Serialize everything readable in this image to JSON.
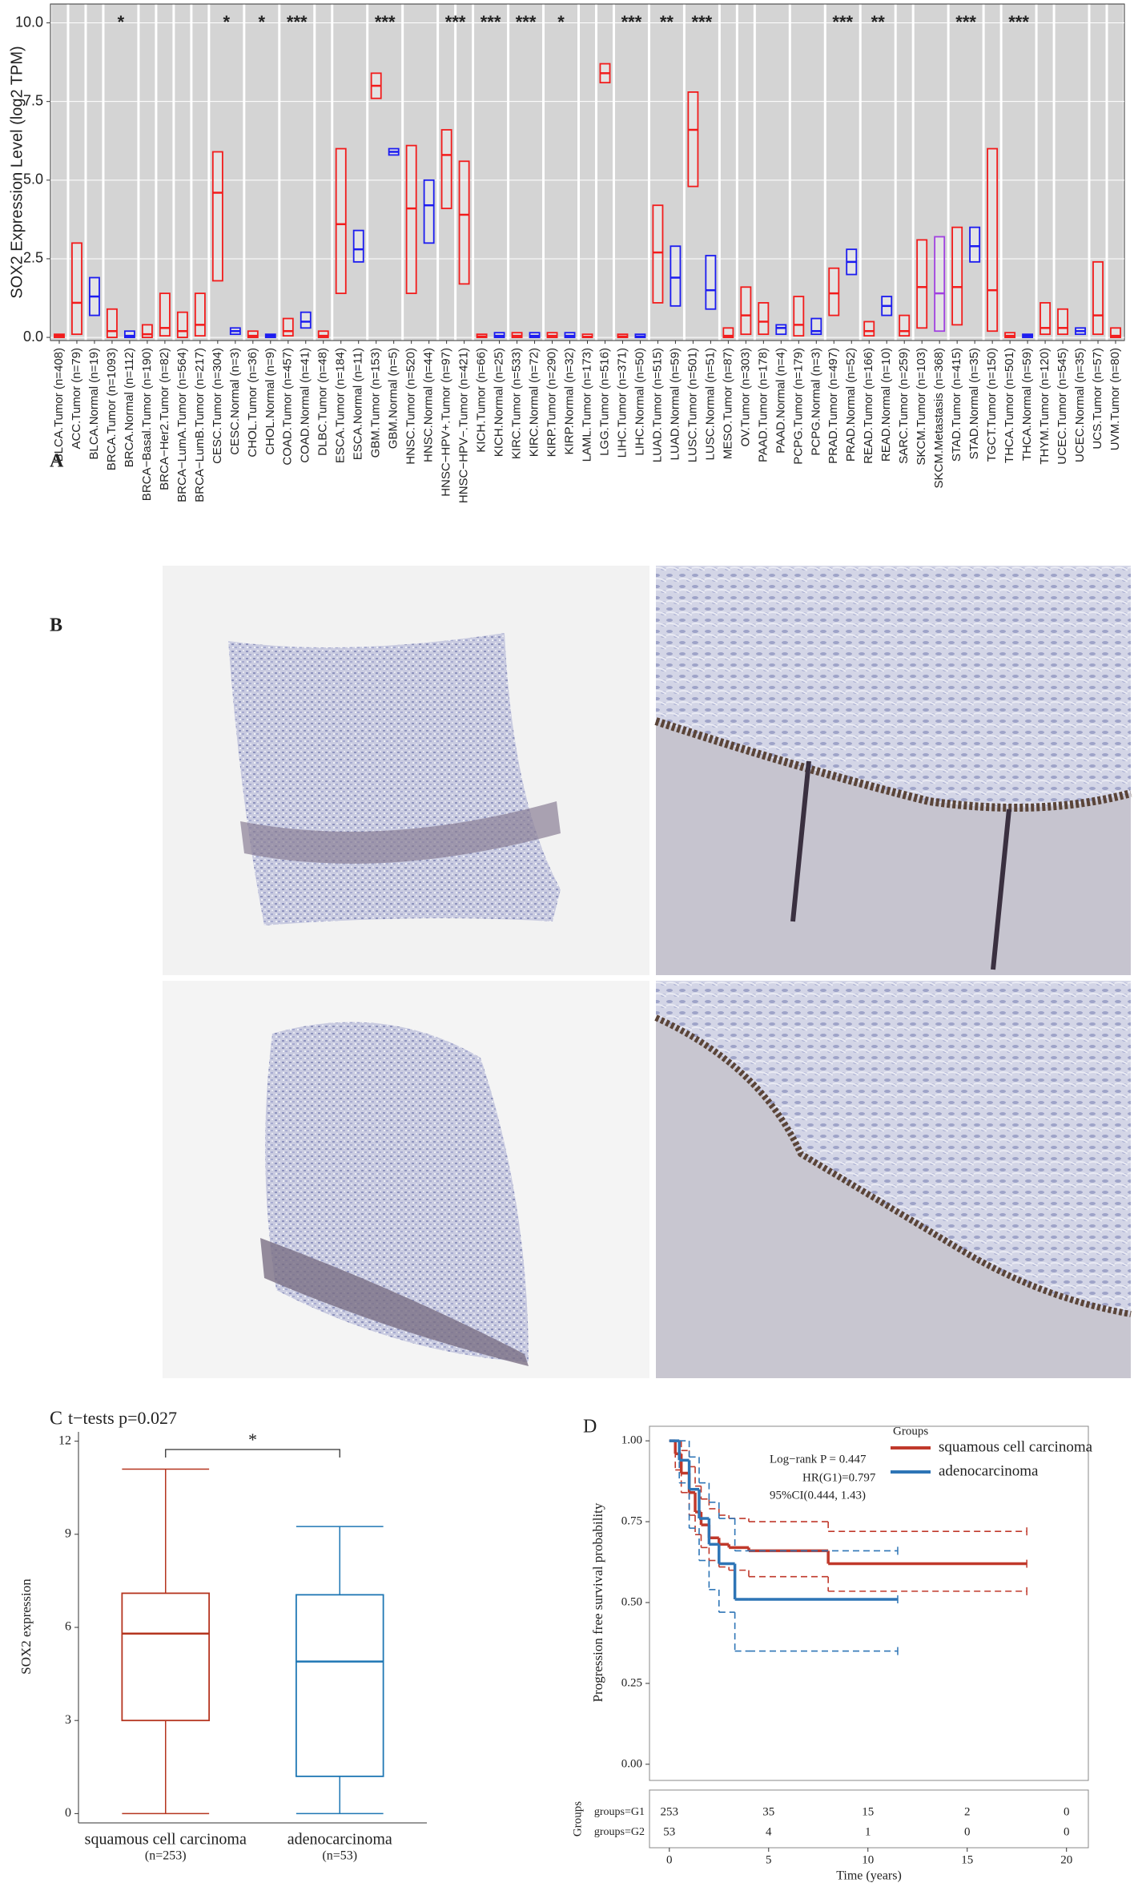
{
  "panel_b": {
    "label": "B"
  },
  "chart_data": [
    {
      "type": "box",
      "label": "A",
      "y_label": "SOX2 Expression Level (log2 TPM)",
      "categories": [
        "BLCA.Tumor (n=408)",
        "ACC.Tumor (n=79)",
        "BLCA.Normal (n=19)",
        "BRCA.Tumor (n=1093)",
        "BRCA.Normal (n=112)",
        "BRCA−Basal.Tumor (n=190)",
        "BRCA−Her2.Tumor (n=82)",
        "BRCA−LumA.Tumor (n=564)",
        "BRCA−LumB.Tumor (n=217)",
        "CESC.Tumor (n=304)",
        "CESC.Normal (n=3)",
        "CHOL.Tumor (n=36)",
        "CHOL.Normal (n=9)",
        "COAD.Tumor (n=457)",
        "COAD.Normal (n=41)",
        "DLBC.Tumor (n=48)",
        "ESCA.Tumor (n=184)",
        "ESCA.Normal (n=11)",
        "GBM.Tumor (n=153)",
        "GBM.Normal (n=5)",
        "HNSC.Tumor (n=520)",
        "HNSC.Normal (n=44)",
        "HNSC−HPV+.Tumor (n=97)",
        "HNSC−HPV−.Tumor (n=421)",
        "KICH.Tumor (n=66)",
        "KICH.Normal (n=25)",
        "KIRC.Tumor (n=533)",
        "KIRC.Normal (n=72)",
        "KIRP.Tumor (n=290)",
        "KIRP.Normal (n=32)",
        "LAML.Tumor (n=173)",
        "LGG.Tumor (n=516)",
        "LIHC.Tumor (n=371)",
        "LIHC.Normal (n=50)",
        "LUAD.Tumor (n=515)",
        "LUAD.Normal (n=59)",
        "LUSC.Tumor (n=501)",
        "LUSC.Normal (n=51)",
        "MESO.Tumor (n=87)",
        "OV.Tumor (n=303)",
        "PAAD.Tumor (n=178)",
        "PAAD.Normal (n=4)",
        "PCPG.Tumor (n=179)",
        "PCPG.Normal (n=3)",
        "PRAD.Tumor (n=497)",
        "PRAD.Normal (n=52)",
        "READ.Tumor (n=166)",
        "READ.Normal (n=10)",
        "SARC.Tumor (n=259)",
        "SKCM.Tumor (n=103)",
        "SKCM.Metastasis (n=368)",
        "STAD.Tumor (n=415)",
        "STAD.Normal (n=35)",
        "TGCT.Tumor (n=150)",
        "THCA.Tumor (n=501)",
        "THCA.Normal (n=59)",
        "THYM.Tumor (n=120)",
        "UCEC.Tumor (n=545)",
        "UCEC.Normal (n=35)",
        "UCS.Tumor (n=57)",
        "UVM.Tumor (n=80)"
      ],
      "q1": [
        0,
        0.1,
        0.7,
        0,
        0,
        0,
        0.05,
        0,
        0.05,
        1.8,
        0.1,
        0,
        0,
        0.05,
        0.3,
        0,
        1.4,
        2.4,
        7.6,
        5.8,
        1.4,
        3.0,
        4.1,
        1.7,
        0,
        0,
        0,
        0,
        0,
        0,
        0,
        8.1,
        0,
        0,
        1.1,
        1.0,
        4.8,
        0.9,
        0,
        0.1,
        0.1,
        0.1,
        0.05,
        0.1,
        0.7,
        2.0,
        0.05,
        0.7,
        0.05,
        0.3,
        0.2,
        0.4,
        2.4,
        0.2,
        0,
        0,
        0.1,
        0.1,
        0.1,
        0.1,
        0
      ],
      "median": [
        0.05,
        1.1,
        1.3,
        0.2,
        0.05,
        0.1,
        0.3,
        0.2,
        0.4,
        4.6,
        0.2,
        0.05,
        0.05,
        0.2,
        0.5,
        0.05,
        3.6,
        2.8,
        8.0,
        5.9,
        4.1,
        4.2,
        5.8,
        3.9,
        0.03,
        0.05,
        0.05,
        0.05,
        0.05,
        0.05,
        0.02,
        8.4,
        0.03,
        0.03,
        2.7,
        1.9,
        6.6,
        1.5,
        0.05,
        0.7,
        0.5,
        0.3,
        0.4,
        0.2,
        1.4,
        2.4,
        0.2,
        1.0,
        0.2,
        1.6,
        1.4,
        1.6,
        2.9,
        1.5,
        0.05,
        0.05,
        0.3,
        0.3,
        0.2,
        0.7,
        0.05
      ],
      "q3": [
        0.1,
        3.0,
        1.9,
        0.9,
        0.2,
        0.4,
        1.4,
        0.8,
        1.4,
        5.9,
        0.3,
        0.2,
        0.1,
        0.6,
        0.8,
        0.2,
        6.0,
        3.4,
        8.4,
        6.0,
        6.1,
        5.0,
        6.6,
        5.6,
        0.1,
        0.15,
        0.15,
        0.15,
        0.15,
        0.15,
        0.1,
        8.7,
        0.1,
        0.1,
        4.2,
        2.9,
        7.8,
        2.6,
        0.3,
        1.6,
        1.1,
        0.4,
        1.3,
        0.6,
        2.2,
        2.8,
        0.5,
        1.3,
        0.7,
        3.1,
        3.2,
        3.5,
        3.5,
        6.0,
        0.15,
        0.1,
        1.1,
        0.9,
        0.3,
        2.4,
        0.3
      ],
      "colors": [
        "#f21c1c",
        "#f21c1c",
        "#1c1cf0",
        "#f21c1c",
        "#1c1cf0",
        "#f21c1c",
        "#f21c1c",
        "#f21c1c",
        "#f21c1c",
        "#f21c1c",
        "#1c1cf0",
        "#f21c1c",
        "#1c1cf0",
        "#f21c1c",
        "#1c1cf0",
        "#f21c1c",
        "#f21c1c",
        "#1c1cf0",
        "#f21c1c",
        "#1c1cf0",
        "#f21c1c",
        "#1c1cf0",
        "#f21c1c",
        "#f21c1c",
        "#f21c1c",
        "#1c1cf0",
        "#f21c1c",
        "#1c1cf0",
        "#f21c1c",
        "#1c1cf0",
        "#f21c1c",
        "#f21c1c",
        "#f21c1c",
        "#1c1cf0",
        "#f21c1c",
        "#1c1cf0",
        "#f21c1c",
        "#1c1cf0",
        "#f21c1c",
        "#f21c1c",
        "#f21c1c",
        "#1c1cf0",
        "#f21c1c",
        "#1c1cf0",
        "#f21c1c",
        "#1c1cf0",
        "#f21c1c",
        "#1c1cf0",
        "#f21c1c",
        "#f21c1c",
        "#a040e0",
        "#f21c1c",
        "#1c1cf0",
        "#f21c1c",
        "#f21c1c",
        "#1c1cf0",
        "#f21c1c",
        "#f21c1c",
        "#1c1cf0",
        "#f21c1c",
        "#f21c1c"
      ],
      "significance": [
        null,
        null,
        null,
        "*",
        null,
        null,
        null,
        null,
        null,
        "*",
        null,
        "*",
        null,
        "***",
        null,
        null,
        null,
        null,
        "***",
        null,
        null,
        null,
        "***",
        null,
        "***",
        null,
        "***",
        null,
        "*",
        null,
        null,
        null,
        "***",
        null,
        "**",
        null,
        "***",
        null,
        null,
        null,
        null,
        null,
        null,
        null,
        "***",
        null,
        "**",
        null,
        null,
        null,
        null,
        "***",
        null,
        null,
        "***",
        null,
        null,
        null,
        null,
        null,
        null
      ],
      "ylim": [
        -0.1,
        10.6
      ],
      "yticks": [
        {
          "value": 0,
          "label": "0.0"
        },
        2.5,
        {
          "value": 5,
          "label": "5.0"
        },
        7.5,
        {
          "value": 10,
          "label": "10.0"
        }
      ]
    },
    {
      "type": "box",
      "label": "C",
      "title": "t−tests p=0.027",
      "y_label": "SOX2 expression",
      "categories": [
        "squamous cell carcinoma",
        "adenocarcinoma"
      ],
      "n_labels": [
        "(n=253)",
        "(n=53)"
      ],
      "colors": [
        "#b5351f",
        "#1f77b4"
      ],
      "min": [
        0,
        0
      ],
      "q1": [
        3.0,
        1.2
      ],
      "median": [
        5.8,
        4.9
      ],
      "q3": [
        7.1,
        7.05
      ],
      "max": [
        11.1,
        9.25
      ],
      "significance": "*",
      "ylim": [
        -0.3,
        12.3
      ],
      "yticks": [
        0,
        3,
        6,
        9,
        12
      ]
    },
    {
      "type": "km",
      "label": "D",
      "y_label": "Progression free survival probability",
      "x_label": "Time (years)",
      "legend_title": "Groups",
      "annotations": [
        "Log−rank P = 0.447",
        "HR(G1)=0.797",
        "95%CI(0.444, 1.43)"
      ],
      "series": [
        {
          "name": "squamous cell carcinoma",
          "color": "#c0392b",
          "x": [
            0,
            0.3,
            0.6,
            1,
            1.3,
            1.6,
            2,
            2.5,
            3,
            4,
            8,
            18
          ],
          "values": [
            1,
            0.96,
            0.9,
            0.84,
            0.78,
            0.74,
            0.7,
            0.68,
            0.67,
            0.66,
            0.62,
            0.62
          ],
          "ci_upper": [
            1,
            1,
            0.97,
            0.92,
            0.86,
            0.82,
            0.79,
            0.77,
            0.76,
            0.75,
            0.72,
            0.72
          ],
          "ci_lower": [
            1,
            0.91,
            0.84,
            0.77,
            0.71,
            0.67,
            0.63,
            0.61,
            0.6,
            0.58,
            0.535,
            0.535
          ]
        },
        {
          "name": "adenocarcinoma",
          "color": "#2e75b6",
          "x": [
            0,
            0.5,
            1,
            1.5,
            2,
            2.5,
            3.3,
            4,
            11.5
          ],
          "values": [
            1,
            0.94,
            0.85,
            0.76,
            0.68,
            0.62,
            0.51,
            0.51,
            0.51
          ],
          "ci_upper": [
            1,
            1,
            0.95,
            0.87,
            0.81,
            0.76,
            0.66,
            0.66,
            0.66
          ],
          "ci_lower": [
            1,
            0.87,
            0.73,
            0.63,
            0.54,
            0.47,
            0.35,
            0.35,
            0.35
          ]
        }
      ],
      "xlim": [
        -1,
        21.1
      ],
      "xticks": [
        0,
        5,
        10,
        15,
        20
      ],
      "ylim": [
        -0.05,
        1.045
      ],
      "yticks": [
        {
          "value": 0,
          "label": "0.00"
        },
        0.25,
        {
          "value": 0.5,
          "label": "0.50"
        },
        0.75,
        {
          "value": 1,
          "label": "1.00"
        }
      ],
      "risk_table": {
        "title": "Groups",
        "rows": [
          "groups=G1",
          "groups=G2"
        ],
        "counts": [
          [
            253,
            35,
            15,
            2,
            0
          ],
          [
            53,
            4,
            1,
            0,
            0
          ]
        ]
      }
    }
  ]
}
